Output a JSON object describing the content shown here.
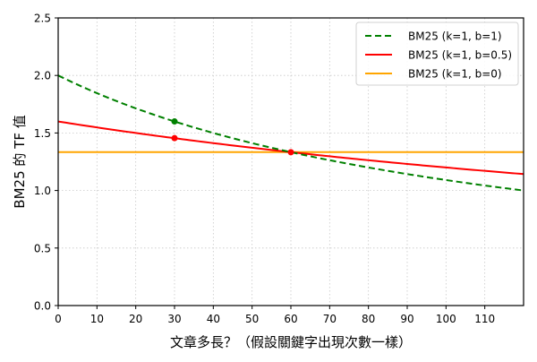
{
  "chart_data": {
    "type": "line",
    "title": "",
    "xlabel": "文章多長？（假設關鍵字出現次數一樣）",
    "ylabel": "BM25 的 TF 值",
    "xlim": [
      0,
      120
    ],
    "ylim": [
      0,
      2.5
    ],
    "xticks": [
      0,
      10,
      20,
      30,
      40,
      50,
      60,
      70,
      80,
      90,
      100,
      110
    ],
    "xtick_labels": [
      "0",
      "10",
      "20",
      "30",
      "40",
      "50",
      "60",
      "70",
      "80",
      "90",
      "100",
      "110"
    ],
    "yticks": [
      0.0,
      0.5,
      1.0,
      1.5,
      2.0,
      2.5
    ],
    "ytick_labels": [
      "0.0",
      "0.5",
      "1.0",
      "1.5",
      "2.0",
      "2.5"
    ],
    "grid": true,
    "legend_position": "upper right",
    "series": [
      {
        "name": "BM25 (k=1, b=1)",
        "color": "#008000",
        "style": "dashed",
        "x": [
          0,
          10,
          20,
          30,
          40,
          50,
          60,
          70,
          80,
          90,
          100,
          110,
          120
        ],
        "values": [
          2.0,
          1.846,
          1.714,
          1.6,
          1.5,
          1.412,
          1.333,
          1.263,
          1.2,
          1.143,
          1.091,
          1.043,
          1.0
        ],
        "markers": [
          {
            "x": 30,
            "y": 1.6
          }
        ]
      },
      {
        "name": "BM25 (k=1, b=0.5)",
        "color": "#ff0000",
        "style": "solid",
        "x": [
          0,
          10,
          20,
          30,
          40,
          50,
          60,
          70,
          80,
          90,
          100,
          110,
          120
        ],
        "values": [
          1.6,
          1.548,
          1.5,
          1.455,
          1.412,
          1.371,
          1.333,
          1.297,
          1.263,
          1.231,
          1.2,
          1.171,
          1.143
        ],
        "markers": [
          {
            "x": 30,
            "y": 1.455
          },
          {
            "x": 60,
            "y": 1.333
          }
        ]
      },
      {
        "name": "BM25 (k=1, b=0)",
        "color": "#ffa500",
        "style": "solid",
        "x": [
          0,
          120
        ],
        "values": [
          1.333,
          1.333
        ],
        "markers": []
      }
    ]
  }
}
